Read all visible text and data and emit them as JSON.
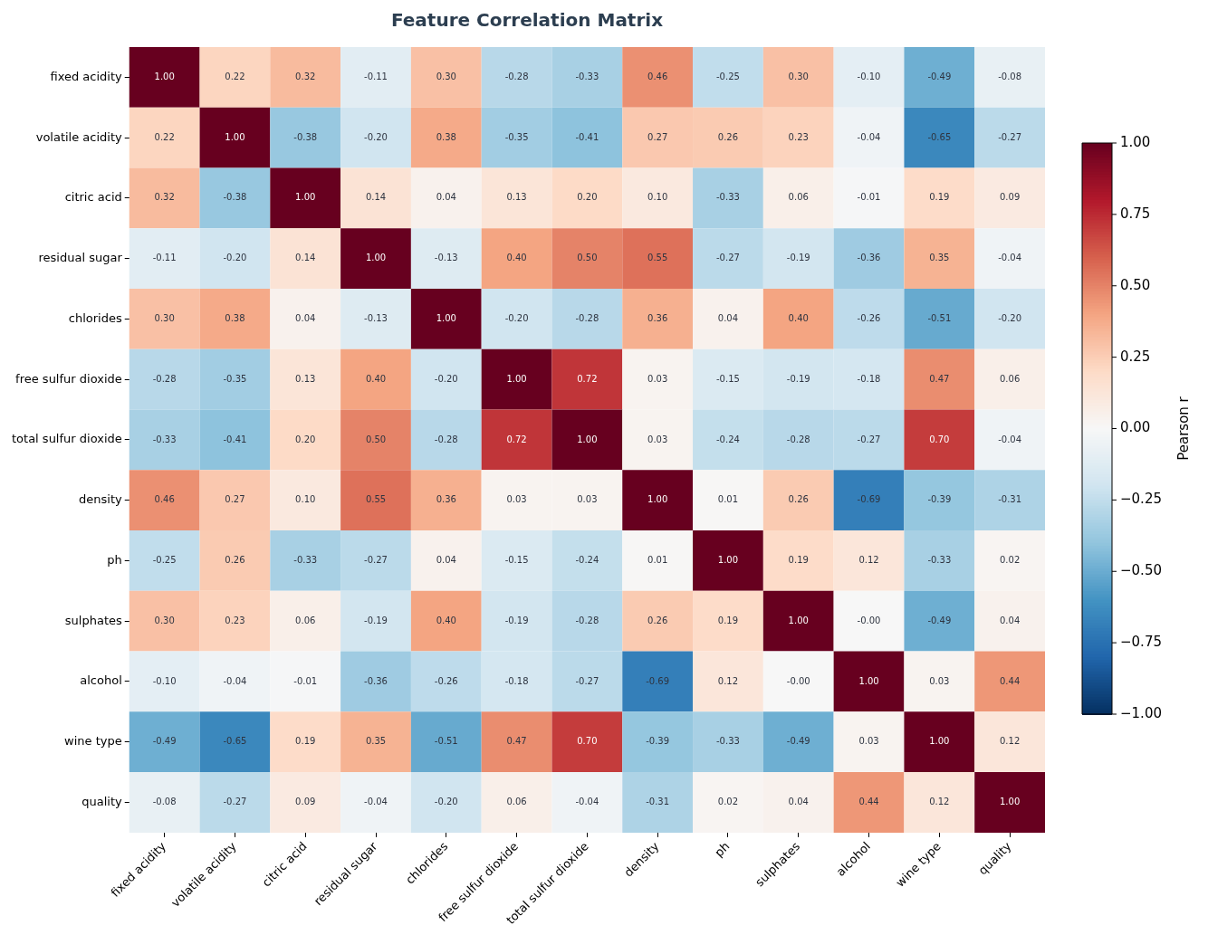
{
  "chart_data": {
    "type": "heatmap",
    "title": "Feature Correlation Matrix",
    "clabel": "Pearson r",
    "categories": [
      "fixed acidity",
      "volatile acidity",
      "citric acid",
      "residual sugar",
      "chlorides",
      "free sulfur dioxide",
      "total sulfur dioxide",
      "density",
      "ph",
      "sulphates",
      "alcohol",
      "wine type",
      "quality"
    ],
    "y_categories": [
      "fixed acidity",
      "volatile acidity",
      "citric acid",
      "residual sugar",
      "chlorides",
      "free sulfur dioxide",
      "total sulfur dioxide",
      "density",
      "ph",
      "sulphates",
      "alcohol",
      "wine type",
      "quality"
    ],
    "cells": [
      [
        1.0,
        0.22,
        0.32,
        -0.11,
        0.3,
        -0.28,
        -0.33,
        0.46,
        -0.25,
        0.3,
        -0.1,
        -0.49,
        -0.08
      ],
      [
        0.22,
        1.0,
        -0.38,
        -0.2,
        0.38,
        -0.35,
        -0.41,
        0.27,
        0.26,
        0.23,
        -0.04,
        -0.65,
        -0.27
      ],
      [
        0.32,
        -0.38,
        1.0,
        0.14,
        0.04,
        0.13,
        0.2,
        0.1,
        -0.33,
        0.06,
        -0.01,
        0.19,
        0.09
      ],
      [
        -0.11,
        -0.2,
        0.14,
        1.0,
        -0.13,
        0.4,
        0.5,
        0.55,
        -0.27,
        -0.19,
        -0.36,
        0.35,
        -0.04
      ],
      [
        0.3,
        0.38,
        0.04,
        -0.13,
        1.0,
        -0.2,
        -0.28,
        0.36,
        0.04,
        0.4,
        -0.26,
        -0.51,
        -0.2
      ],
      [
        -0.28,
        -0.35,
        0.13,
        0.4,
        -0.2,
        1.0,
        0.72,
        0.03,
        -0.15,
        -0.19,
        -0.18,
        0.47,
        0.06
      ],
      [
        -0.33,
        -0.41,
        0.2,
        0.5,
        -0.28,
        0.72,
        1.0,
        0.03,
        -0.24,
        -0.28,
        -0.27,
        0.7,
        -0.04
      ],
      [
        0.46,
        0.27,
        0.1,
        0.55,
        0.36,
        0.03,
        0.03,
        1.0,
        0.01,
        0.26,
        -0.69,
        -0.39,
        -0.31
      ],
      [
        -0.25,
        0.26,
        -0.33,
        -0.27,
        0.04,
        -0.15,
        -0.24,
        0.01,
        1.0,
        0.19,
        0.12,
        -0.33,
        0.02
      ],
      [
        0.3,
        0.23,
        0.06,
        -0.19,
        0.4,
        -0.19,
        -0.28,
        0.26,
        0.19,
        1.0,
        0,
        -0.49,
        0.04
      ],
      [
        -0.1,
        -0.04,
        -0.01,
        -0.36,
        -0.26,
        -0.18,
        -0.27,
        -0.69,
        0.12,
        0,
        1.0,
        0.03,
        0.44
      ],
      [
        -0.49,
        -0.65,
        0.19,
        0.35,
        -0.51,
        0.47,
        0.7,
        -0.39,
        -0.33,
        -0.49,
        0.03,
        1.0,
        0.12
      ],
      [
        -0.08,
        -0.27,
        0.09,
        -0.04,
        -0.2,
        0.06,
        -0.04,
        -0.31,
        0.02,
        0.04,
        0.44,
        0.12,
        1.0
      ]
    ],
    "cell_labels": [
      [
        "1.00",
        "0.22",
        "0.32",
        "-0.11",
        "0.30",
        "-0.28",
        "-0.33",
        "0.46",
        "-0.25",
        "0.30",
        "-0.10",
        "-0.49",
        "-0.08"
      ],
      [
        "0.22",
        "1.00",
        "-0.38",
        "-0.20",
        "0.38",
        "-0.35",
        "-0.41",
        "0.27",
        "0.26",
        "0.23",
        "-0.04",
        "-0.65",
        "-0.27"
      ],
      [
        "0.32",
        "-0.38",
        "1.00",
        "0.14",
        "0.04",
        "0.13",
        "0.20",
        "0.10",
        "-0.33",
        "0.06",
        "-0.01",
        "0.19",
        "0.09"
      ],
      [
        "-0.11",
        "-0.20",
        "0.14",
        "1.00",
        "-0.13",
        "0.40",
        "0.50",
        "0.55",
        "-0.27",
        "-0.19",
        "-0.36",
        "0.35",
        "-0.04"
      ],
      [
        "0.30",
        "0.38",
        "0.04",
        "-0.13",
        "1.00",
        "-0.20",
        "-0.28",
        "0.36",
        "0.04",
        "0.40",
        "-0.26",
        "-0.51",
        "-0.20"
      ],
      [
        "-0.28",
        "-0.35",
        "0.13",
        "0.40",
        "-0.20",
        "1.00",
        "0.72",
        "0.03",
        "-0.15",
        "-0.19",
        "-0.18",
        "0.47",
        "0.06"
      ],
      [
        "-0.33",
        "-0.41",
        "0.20",
        "0.50",
        "-0.28",
        "0.72",
        "1.00",
        "0.03",
        "-0.24",
        "-0.28",
        "-0.27",
        "0.70",
        "-0.04"
      ],
      [
        "0.46",
        "0.27",
        "0.10",
        "0.55",
        "0.36",
        "0.03",
        "0.03",
        "1.00",
        "0.01",
        "0.26",
        "-0.69",
        "-0.39",
        "-0.31"
      ],
      [
        "-0.25",
        "0.26",
        "-0.33",
        "-0.27",
        "0.04",
        "-0.15",
        "-0.24",
        "0.01",
        "1.00",
        "0.19",
        "0.12",
        "-0.33",
        "0.02"
      ],
      [
        "0.30",
        "0.23",
        "0.06",
        "-0.19",
        "0.40",
        "-0.19",
        "-0.28",
        "0.26",
        "0.19",
        "1.00",
        "-0.00",
        "-0.49",
        "0.04"
      ],
      [
        "-0.10",
        "-0.04",
        "-0.01",
        "-0.36",
        "-0.26",
        "-0.18",
        "-0.27",
        "-0.69",
        "0.12",
        "-0.00",
        "1.00",
        "0.03",
        "0.44"
      ],
      [
        "-0.49",
        "-0.65",
        "0.19",
        "0.35",
        "-0.51",
        "0.47",
        "0.70",
        "-0.39",
        "-0.33",
        "-0.49",
        "0.03",
        "1.00",
        "0.12"
      ],
      [
        "-0.08",
        "-0.27",
        "0.09",
        "-0.04",
        "-0.20",
        "0.06",
        "-0.04",
        "-0.31",
        "0.02",
        "0.04",
        "0.44",
        "0.12",
        "1.00"
      ]
    ],
    "clim": [
      -1,
      1
    ],
    "cticks": [
      {
        "value": 1,
        "label": "1.00"
      },
      {
        "value": 0.75,
        "label": "0.75"
      },
      {
        "value": 0.5,
        "label": "0.50"
      },
      {
        "value": 0.25,
        "label": "0.25"
      },
      {
        "value": 0,
        "label": "0.00"
      },
      {
        "value": -0.25,
        "label": "−0.25"
      },
      {
        "value": -0.5,
        "label": "−0.50"
      },
      {
        "value": -0.75,
        "label": "−0.75"
      },
      {
        "value": -1,
        "label": "−1.00"
      }
    ]
  }
}
